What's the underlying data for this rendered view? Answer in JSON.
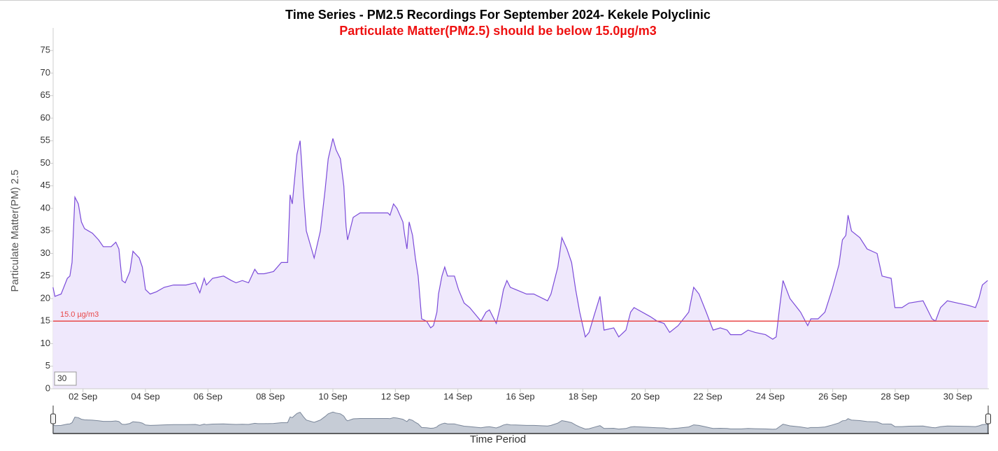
{
  "chart_data": {
    "type": "area",
    "title": "Time Series - PM2.5 Recordings For September 2024- Kekele Polyclinic",
    "subtitle": "Particulate Matter(PM2.5) should be below 15.0µg/m3",
    "subtitle_color": "#ee1111",
    "y_label": "Particulate Matter(PM) 2.5",
    "x_label": "Time Period",
    "range_input": "30",
    "color": "#7b4bd9",
    "fill": "#efe8fc",
    "threshold": {
      "value": 15,
      "label": "15.0 µg/m3",
      "color": "#e84848"
    },
    "xlim": [
      1,
      31
    ],
    "ylim": [
      0,
      80
    ],
    "yticks": [
      0,
      5,
      10,
      15,
      20,
      25,
      30,
      35,
      40,
      45,
      50,
      55,
      60,
      65,
      70,
      75
    ],
    "xticks": [
      {
        "value": 2,
        "label": "02 Sep"
      },
      {
        "value": 4,
        "label": "04 Sep"
      },
      {
        "value": 6,
        "label": "06 Sep"
      },
      {
        "value": 8,
        "label": "08 Sep"
      },
      {
        "value": 10,
        "label": "10 Sep"
      },
      {
        "value": 12,
        "label": "12 Sep"
      },
      {
        "value": 14,
        "label": "14 Sep"
      },
      {
        "value": 16,
        "label": "16 Sep"
      },
      {
        "value": 18,
        "label": "18 Sep"
      },
      {
        "value": 20,
        "label": "20 Sep"
      },
      {
        "value": 22,
        "label": "22 Sep"
      },
      {
        "value": 24,
        "label": "24 Sep"
      },
      {
        "value": 26,
        "label": "26 Sep"
      },
      {
        "value": 28,
        "label": "28 Sep"
      },
      {
        "value": 30,
        "label": "30 Sep"
      }
    ],
    "x": [
      1.04,
      1.1,
      1.3,
      1.5,
      1.58,
      1.65,
      1.74,
      1.85,
      1.95,
      2.05,
      2.3,
      2.5,
      2.65,
      2.9,
      3.05,
      3.15,
      3.25,
      3.35,
      3.5,
      3.6,
      3.8,
      3.9,
      4.0,
      4.15,
      4.35,
      4.6,
      4.9,
      5.3,
      5.6,
      5.74,
      5.88,
      5.95,
      6.15,
      6.5,
      6.75,
      6.9,
      7.1,
      7.3,
      7.5,
      7.6,
      7.8,
      8.1,
      8.35,
      8.55,
      8.63,
      8.7,
      8.85,
      8.95,
      9.0,
      9.05,
      9.15,
      9.4,
      9.55,
      9.6,
      9.75,
      9.85,
      10.0,
      10.1,
      10.24,
      10.35,
      10.42,
      10.47,
      10.65,
      10.87,
      11.76,
      11.83,
      11.94,
      12.05,
      12.24,
      12.3,
      12.37,
      12.44,
      12.55,
      12.64,
      12.73,
      12.84,
      13.0,
      13.13,
      13.22,
      13.33,
      13.38,
      13.49,
      13.58,
      13.67,
      13.89,
      14.02,
      14.2,
      14.38,
      14.74,
      14.9,
      15.01,
      15.23,
      15.35,
      15.46,
      15.57,
      15.68,
      15.85,
      16.2,
      16.43,
      16.87,
      16.98,
      17.2,
      17.33,
      17.49,
      17.64,
      17.77,
      17.9,
      18.08,
      18.2,
      18.35,
      18.55,
      18.68,
      18.99,
      19.15,
      19.38,
      19.53,
      19.64,
      20.16,
      20.38,
      20.6,
      20.78,
      21.05,
      21.39,
      21.55,
      21.72,
      21.95,
      22.17,
      22.4,
      22.62,
      22.73,
      23.07,
      23.29,
      23.52,
      23.85,
      24.08,
      24.19,
      24.3,
      24.41,
      24.63,
      24.97,
      25.2,
      25.3,
      25.53,
      25.75,
      25.98,
      26.2,
      26.31,
      26.42,
      26.49,
      26.6,
      26.87,
      27.1,
      27.42,
      27.58,
      27.87,
      27.99,
      28.22,
      28.44,
      28.89,
      29.0,
      29.18,
      29.29,
      29.45,
      29.67,
      30.0,
      30.34,
      30.57,
      30.68,
      30.79,
      30.96
    ],
    "values": [
      22.5,
      20.5,
      21,
      24.5,
      25,
      28,
      42.5,
      41,
      37,
      35.5,
      34.5,
      33,
      31.5,
      31.5,
      32.5,
      31,
      24,
      23.5,
      26,
      30.5,
      29,
      27,
      22,
      21,
      21.5,
      22.5,
      23,
      23,
      23.5,
      21.3,
      24.5,
      23,
      24.5,
      25,
      24,
      23.5,
      24,
      23.5,
      26.5,
      25.5,
      25.5,
      26,
      28,
      28,
      43,
      41,
      52,
      55,
      50,
      44,
      35,
      29,
      33.5,
      35,
      44,
      51,
      55.5,
      53,
      51,
      45,
      36,
      33,
      38,
      39,
      39,
      38.5,
      41,
      40,
      37,
      34,
      31,
      37,
      34,
      29,
      25,
      15.5,
      15,
      13.5,
      14,
      17,
      21,
      25,
      27,
      25,
      25,
      22,
      19,
      18,
      15,
      17,
      17.5,
      14.5,
      18,
      22,
      24,
      22.5,
      22,
      21,
      21,
      19.5,
      21,
      27,
      33.5,
      31,
      28,
      22,
      17,
      11.5,
      12.5,
      16,
      20.5,
      13,
      13.5,
      11.5,
      13,
      17,
      18,
      16,
      15,
      14.5,
      12.5,
      14,
      17,
      22.5,
      21,
      17,
      13,
      13.5,
      13,
      12,
      12,
      13,
      12.5,
      12,
      11,
      11.5,
      18,
      24,
      20,
      17,
      14,
      15.5,
      15.5,
      17,
      22,
      27.5,
      33,
      34,
      38.5,
      35,
      33.5,
      31,
      30,
      25,
      24.5,
      18,
      18,
      19,
      19.5,
      18,
      15.5,
      15,
      18,
      19.5,
      19,
      18.5,
      18,
      20,
      23,
      24
    ]
  }
}
